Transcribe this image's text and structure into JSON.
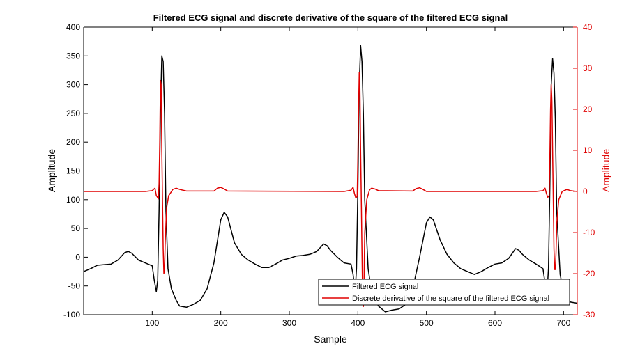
{
  "chart_data": {
    "type": "line",
    "title": "Filtered ECG signal and discrete derivative of the square of the filtered ECG signal",
    "xlabel": "Sample",
    "ylabel_left": "Amplitude",
    "ylabel_right": "Amplitude",
    "xlim": [
      0,
      720
    ],
    "ylim_left": [
      -100,
      400
    ],
    "ylim_right": [
      -30,
      40
    ],
    "x_ticks": [
      100,
      200,
      300,
      400,
      500,
      600,
      700
    ],
    "y_ticks_left": [
      -100,
      -50,
      0,
      50,
      100,
      150,
      200,
      250,
      300,
      350,
      400
    ],
    "y_ticks_right": [
      -30,
      -20,
      -10,
      0,
      10,
      20,
      30,
      40
    ],
    "grid": false,
    "legend_placement": "bottom-right",
    "colors": {
      "left_axis": "#000000",
      "right_axis": "#e00000",
      "ecg": "#000000",
      "derivative": "#e00000"
    },
    "series": [
      {
        "name": "Filtered ECG signal",
        "axis": "left",
        "color": "#000000",
        "points": [
          [
            0,
            -25
          ],
          [
            10,
            -20
          ],
          [
            20,
            -14
          ],
          [
            30,
            -13
          ],
          [
            40,
            -12
          ],
          [
            50,
            -5
          ],
          [
            60,
            8
          ],
          [
            65,
            10
          ],
          [
            70,
            7
          ],
          [
            80,
            -5
          ],
          [
            90,
            -10
          ],
          [
            100,
            -15
          ],
          [
            103,
            -40
          ],
          [
            106,
            -60
          ],
          [
            108,
            -40
          ],
          [
            110,
            80
          ],
          [
            112,
            250
          ],
          [
            114,
            350
          ],
          [
            116,
            340
          ],
          [
            118,
            250
          ],
          [
            120,
            80
          ],
          [
            123,
            -20
          ],
          [
            128,
            -55
          ],
          [
            135,
            -75
          ],
          [
            140,
            -85
          ],
          [
            150,
            -87
          ],
          [
            160,
            -82
          ],
          [
            170,
            -75
          ],
          [
            180,
            -55
          ],
          [
            190,
            -10
          ],
          [
            200,
            65
          ],
          [
            205,
            78
          ],
          [
            210,
            70
          ],
          [
            220,
            25
          ],
          [
            230,
            5
          ],
          [
            240,
            -5
          ],
          [
            250,
            -12
          ],
          [
            260,
            -18
          ],
          [
            270,
            -18
          ],
          [
            280,
            -12
          ],
          [
            290,
            -5
          ],
          [
            300,
            -2
          ],
          [
            310,
            2
          ],
          [
            320,
            3
          ],
          [
            330,
            5
          ],
          [
            340,
            10
          ],
          [
            350,
            23
          ],
          [
            355,
            20
          ],
          [
            360,
            12
          ],
          [
            370,
            0
          ],
          [
            380,
            -10
          ],
          [
            390,
            -12
          ],
          [
            393,
            -30
          ],
          [
            396,
            -60
          ],
          [
            398,
            -20
          ],
          [
            400,
            120
          ],
          [
            402,
            300
          ],
          [
            404,
            368
          ],
          [
            406,
            340
          ],
          [
            408,
            250
          ],
          [
            410,
            100
          ],
          [
            415,
            -20
          ],
          [
            420,
            -60
          ],
          [
            430,
            -85
          ],
          [
            440,
            -95
          ],
          [
            450,
            -92
          ],
          [
            460,
            -90
          ],
          [
            470,
            -82
          ],
          [
            480,
            -55
          ],
          [
            490,
            0
          ],
          [
            500,
            60
          ],
          [
            505,
            70
          ],
          [
            510,
            65
          ],
          [
            520,
            30
          ],
          [
            530,
            5
          ],
          [
            540,
            -10
          ],
          [
            550,
            -20
          ],
          [
            560,
            -25
          ],
          [
            570,
            -30
          ],
          [
            580,
            -25
          ],
          [
            590,
            -18
          ],
          [
            600,
            -12
          ],
          [
            610,
            -10
          ],
          [
            620,
            -2
          ],
          [
            630,
            15
          ],
          [
            635,
            12
          ],
          [
            640,
            5
          ],
          [
            650,
            -5
          ],
          [
            660,
            -12
          ],
          [
            670,
            -20
          ],
          [
            673,
            -45
          ],
          [
            676,
            -60
          ],
          [
            678,
            -20
          ],
          [
            680,
            120
          ],
          [
            682,
            300
          ],
          [
            684,
            345
          ],
          [
            686,
            320
          ],
          [
            688,
            240
          ],
          [
            690,
            80
          ],
          [
            695,
            -30
          ],
          [
            700,
            -60
          ],
          [
            710,
            -78
          ],
          [
            720,
            -80
          ]
        ]
      },
      {
        "name": "Discrete derivative of the square of the filtered ECG signal",
        "axis": "right",
        "color": "#e00000",
        "points": [
          [
            0,
            0
          ],
          [
            90,
            0
          ],
          [
            100,
            0.2
          ],
          [
            104,
            0.8
          ],
          [
            106,
            -1
          ],
          [
            108,
            -1.5
          ],
          [
            109,
            -1.8
          ],
          [
            110,
            2
          ],
          [
            111,
            12
          ],
          [
            112,
            27
          ],
          [
            113,
            26
          ],
          [
            114,
            10
          ],
          [
            115,
            -2
          ],
          [
            116,
            -14
          ],
          [
            117,
            -20
          ],
          [
            118,
            -19
          ],
          [
            119,
            -12
          ],
          [
            121,
            -4
          ],
          [
            124,
            -1
          ],
          [
            127,
            -0.3
          ],
          [
            130,
            0.5
          ],
          [
            135,
            0.8
          ],
          [
            140,
            0.5
          ],
          [
            150,
            0.1
          ],
          [
            190,
            0.1
          ],
          [
            195,
            0.8
          ],
          [
            200,
            1
          ],
          [
            205,
            0.6
          ],
          [
            210,
            0.1
          ],
          [
            380,
            0
          ],
          [
            390,
            0.3
          ],
          [
            393,
            1
          ],
          [
            395,
            -0.5
          ],
          [
            397,
            -1.6
          ],
          [
            399,
            -1.2
          ],
          [
            400,
            8
          ],
          [
            401,
            20
          ],
          [
            402,
            29
          ],
          [
            403,
            25
          ],
          [
            404,
            10
          ],
          [
            405,
            -2
          ],
          [
            406,
            -15
          ],
          [
            407,
            -27
          ],
          [
            408,
            -28
          ],
          [
            409,
            -22
          ],
          [
            410,
            -10
          ],
          [
            413,
            -2
          ],
          [
            417,
            0.4
          ],
          [
            420,
            0.8
          ],
          [
            425,
            0.6
          ],
          [
            430,
            0.2
          ],
          [
            480,
            0.1
          ],
          [
            485,
            0.7
          ],
          [
            490,
            0.9
          ],
          [
            495,
            0.5
          ],
          [
            500,
            0
          ],
          [
            660,
            0
          ],
          [
            670,
            0.2
          ],
          [
            673,
            0.8
          ],
          [
            675,
            -0.5
          ],
          [
            677,
            -1.4
          ],
          [
            679,
            -1
          ],
          [
            680,
            8
          ],
          [
            681,
            20
          ],
          [
            682,
            26
          ],
          [
            683,
            22
          ],
          [
            684,
            10
          ],
          [
            685,
            -2
          ],
          [
            686,
            -14
          ],
          [
            687,
            -19
          ],
          [
            688,
            -19
          ],
          [
            689,
            -15
          ],
          [
            690,
            -8
          ],
          [
            693,
            -2
          ],
          [
            698,
            0
          ],
          [
            705,
            0.5
          ],
          [
            710,
            0.2
          ],
          [
            720,
            0
          ]
        ]
      }
    ]
  }
}
